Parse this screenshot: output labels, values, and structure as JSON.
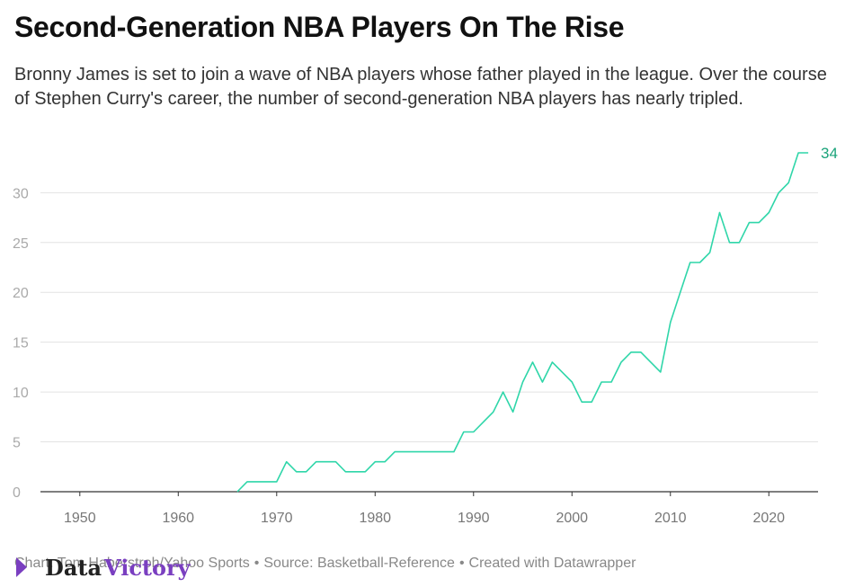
{
  "title": "Second-Generation NBA Players On The Rise",
  "subtitle": "Bronny James is set to join a wave of NBA players whose father played in the league. Over the course of Stephen Curry's career, the number of second-generation NBA players has nearly tripled.",
  "footer": {
    "chart_credit": "Chart: Tom Haberstroh/Yahoo Sports",
    "source": "Source: Basketball-Reference",
    "created": "Created with Datawrapper"
  },
  "watermark": {
    "text_dark": "Data",
    "text_accent": "Victory"
  },
  "colors": {
    "line": "#2fd6a9",
    "label": "#1aa37a",
    "grid": "#e3e3e3",
    "axis_text": "#aaaaaa",
    "watermark_dark": "#222222",
    "watermark_accent": "#7a3fc0"
  },
  "chart_data": {
    "type": "line",
    "title": "Second-Generation NBA Players On The Rise",
    "xlabel": "",
    "ylabel": "",
    "xlim": [
      1946,
      2025
    ],
    "ylim": [
      0,
      34
    ],
    "xticks": [
      1950,
      1960,
      1970,
      1980,
      1990,
      2000,
      2010,
      2020
    ],
    "yticks": [
      0,
      5,
      10,
      15,
      20,
      25,
      30
    ],
    "grid": true,
    "end_label": "34",
    "series": [
      {
        "x": [
          1966,
          1967,
          1968,
          1969,
          1970,
          1971,
          1972,
          1973,
          1974,
          1975,
          1976,
          1977,
          1978,
          1979,
          1980,
          1981,
          1982,
          1983,
          1984,
          1985,
          1986,
          1987,
          1988,
          1989,
          1990,
          1991,
          1992,
          1993,
          1994,
          1995,
          1996,
          1997,
          1998,
          1999,
          2000,
          2001,
          2002,
          2003,
          2004,
          2005,
          2006,
          2007,
          2008,
          2009,
          2010,
          2011,
          2012,
          2013,
          2014,
          2015,
          2016,
          2017,
          2018,
          2019,
          2020,
          2021,
          2022,
          2023,
          2024
        ],
        "values": [
          0,
          1,
          1,
          1,
          1,
          3,
          2,
          2,
          3,
          3,
          3,
          2,
          2,
          2,
          3,
          3,
          4,
          4,
          4,
          4,
          4,
          4,
          4,
          6,
          6,
          7,
          8,
          10,
          8,
          11,
          13,
          11,
          13,
          12,
          11,
          9,
          9,
          11,
          11,
          13,
          14,
          14,
          13,
          12,
          17,
          20,
          23,
          23,
          24,
          28,
          25,
          25,
          27,
          27,
          28,
          30,
          31,
          34,
          34
        ]
      }
    ]
  }
}
